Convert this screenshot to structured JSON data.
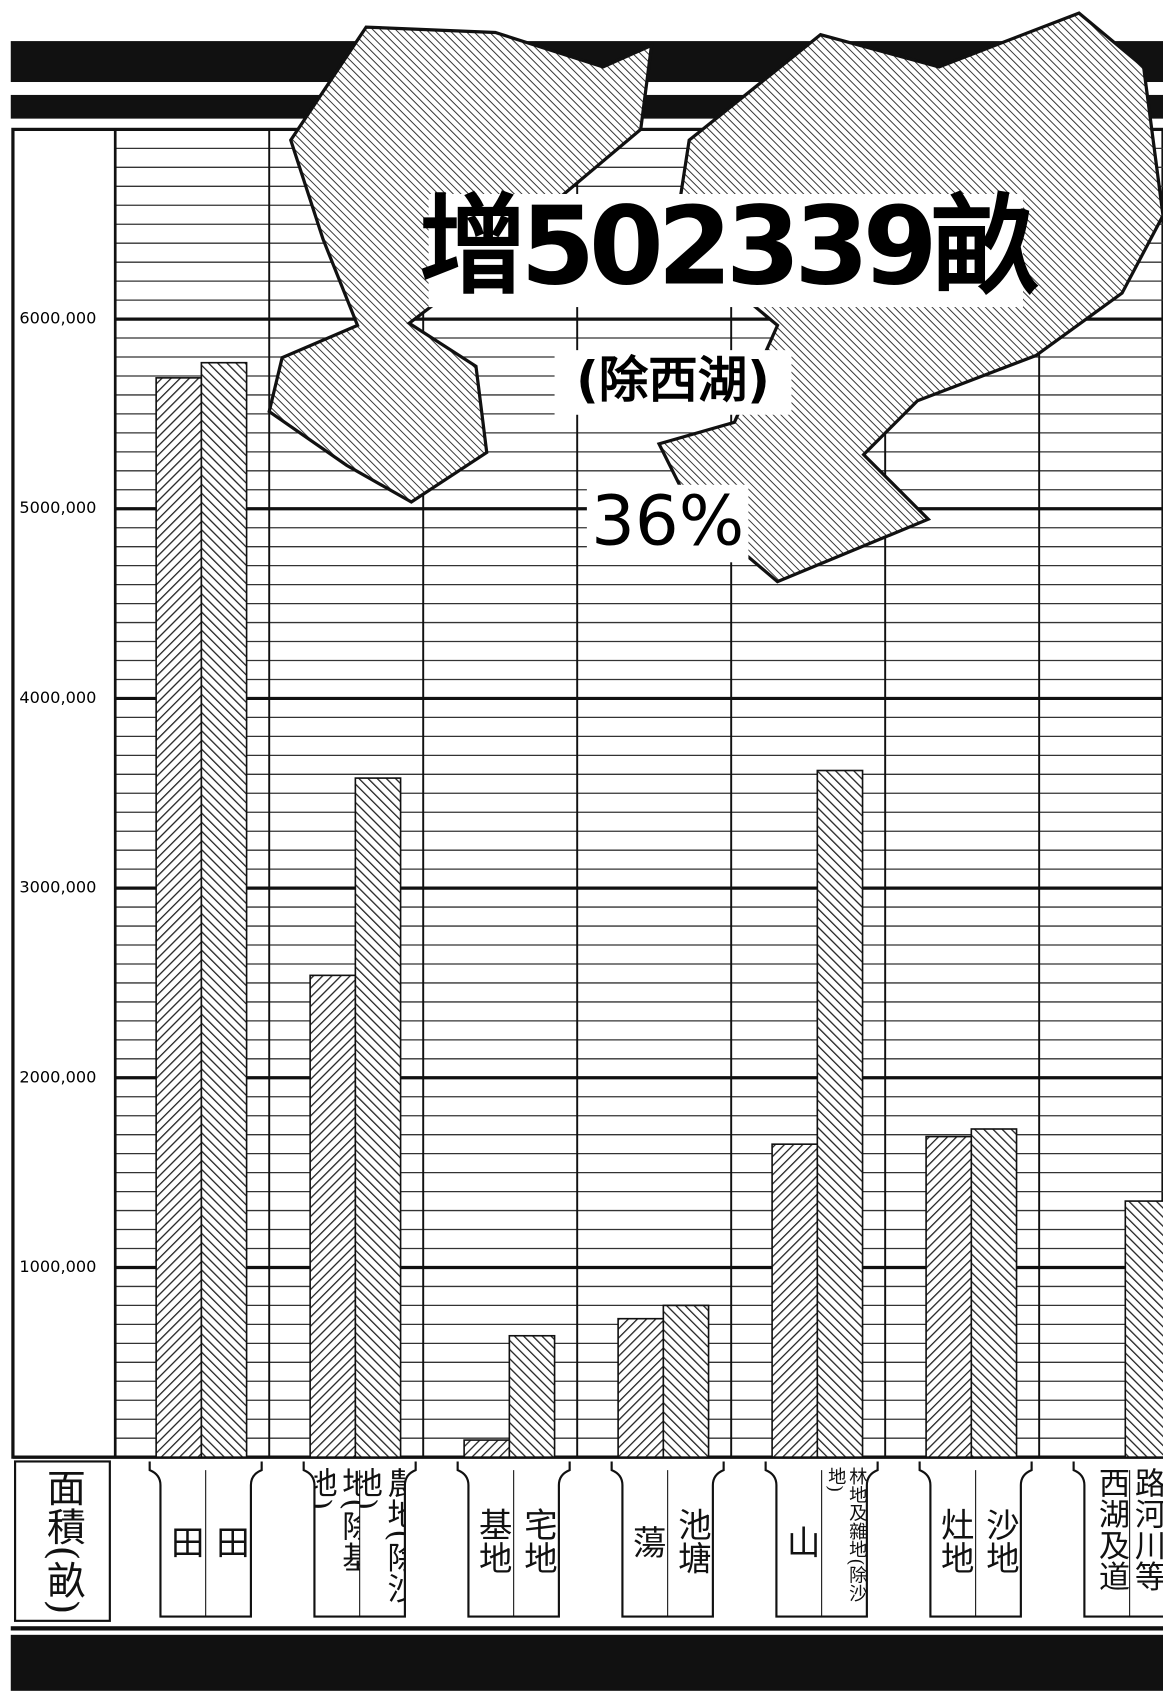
{
  "chart_data": {
    "type": "bar",
    "title": "增502339畝",
    "subtitle": "(除西湖)",
    "annotation": "36%",
    "y_label": "面積(畝)",
    "ylim": [
      0,
      7000000
    ],
    "yticks": [
      {
        "value": 1000000,
        "label": "1000,000"
      },
      {
        "value": 2000000,
        "label": "2000,000"
      },
      {
        "value": 3000000,
        "label": "3000,000"
      },
      {
        "value": 4000000,
        "label": "4000,000"
      },
      {
        "value": 5000000,
        "label": "5000,000"
      },
      {
        "value": 6000000,
        "label": "6000,000"
      }
    ],
    "grid": true,
    "series": [
      {
        "color": "#333333",
        "hatch": "/",
        "labels": [
          "田",
          "地(除基地)",
          "基地",
          "蕩",
          "山",
          "灶地",
          null
        ],
        "values": [
          5690000,
          2540000,
          90000,
          730000,
          1650000,
          1690000,
          null
        ]
      },
      {
        "color": "#333333",
        "hatch": "\\",
        "labels": [
          "田",
          "農地(除沙地)",
          "宅地",
          "池塘",
          "林地及雜地(除沙地)",
          "沙地",
          "路河川等西湖及道"
        ],
        "values": [
          5770000,
          3580000,
          640000,
          800000,
          3620000,
          1730000,
          1350000
        ]
      }
    ]
  }
}
